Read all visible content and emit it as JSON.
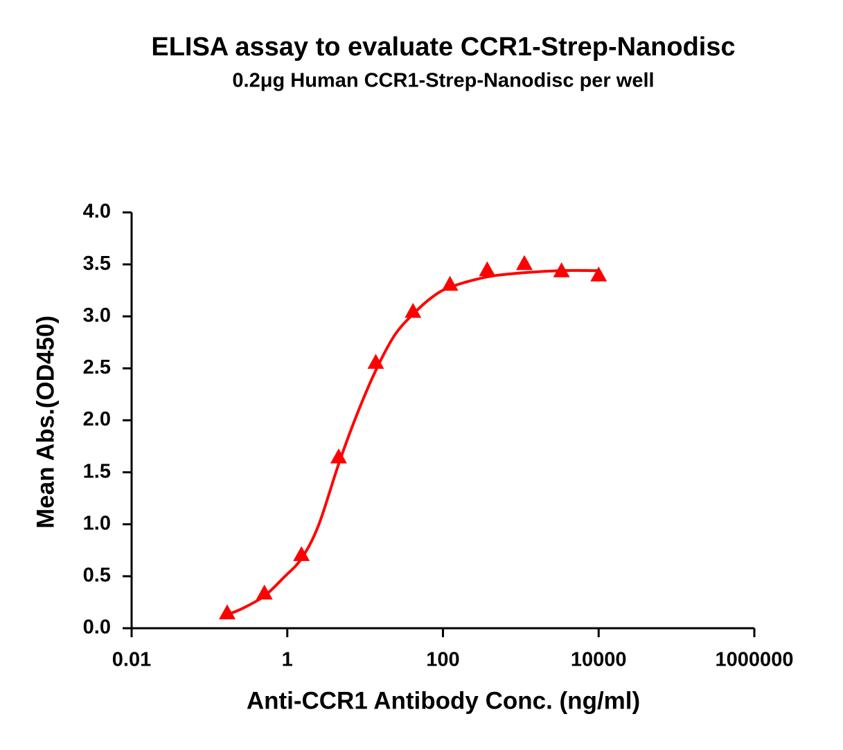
{
  "chart_data": {
    "type": "scatter",
    "title": "ELISA assay to evaluate CCR1-Strep-Nanodisc",
    "subtitle": "0.2μg Human CCR1-Strep-Nanodisc per well",
    "xlabel": "Anti-CCR1 Antibody Conc. (ng/ml)",
    "ylabel": "Mean Abs.(OD450)",
    "xscale": "log",
    "xlim": [
      0.01,
      1000000
    ],
    "xticks": [
      0.01,
      1,
      100,
      10000,
      1000000
    ],
    "ylim": [
      0,
      4
    ],
    "yticks": [
      {
        "value": 0,
        "label": "0.0"
      },
      0.5,
      {
        "value": 1,
        "label": "1.0"
      },
      1.5,
      {
        "value": 2,
        "label": "2.0"
      },
      2.5,
      {
        "value": 3,
        "label": "3.0"
      },
      3.5,
      {
        "value": 4,
        "label": "4.0"
      }
    ],
    "grid": false,
    "series": [
      {
        "mode": "markers",
        "marker": "triangle",
        "color": "#ff0000",
        "x": [
          0.169,
          0.508,
          1.52,
          4.57,
          13.7,
          41.2,
          123,
          370,
          1111,
          3333,
          10000
        ],
        "values": [
          0.15,
          0.34,
          0.71,
          1.65,
          2.56,
          3.05,
          3.31,
          3.45,
          3.51,
          3.44,
          3.4
        ]
      },
      {
        "mode": "line",
        "color": "#ff0000",
        "x": [
          0.169,
          0.265,
          0.508,
          0.906,
          1.52,
          2.52,
          4.57,
          7.79,
          13.7,
          24.0,
          41.2,
          71.2,
          123,
          370,
          1111,
          3333,
          10000
        ],
        "values": [
          0.13,
          0.19,
          0.31,
          0.49,
          0.67,
          0.99,
          1.58,
          2.05,
          2.48,
          2.82,
          3.02,
          3.18,
          3.28,
          3.38,
          3.42,
          3.44,
          3.44
        ]
      }
    ]
  }
}
